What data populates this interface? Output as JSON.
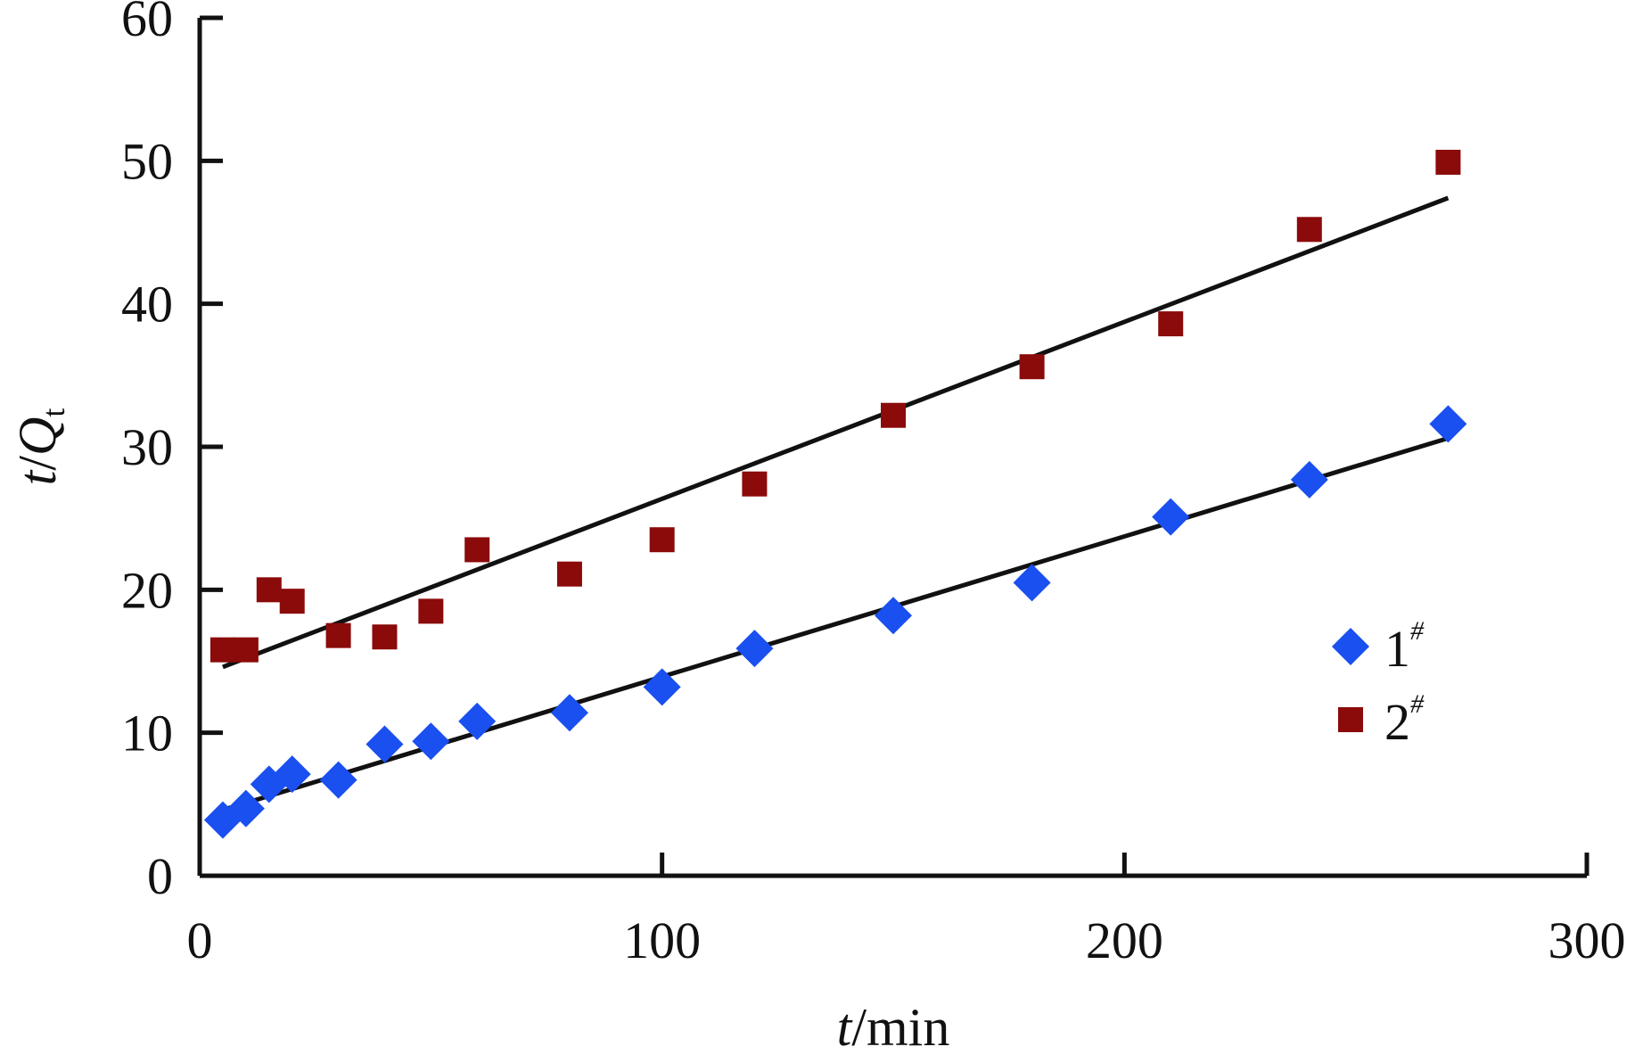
{
  "chart_data": {
    "type": "scatter",
    "xlabel": {
      "italic": "t",
      "rest": "/min"
    },
    "ylabel": {
      "italic_a": "t",
      "slash": "/",
      "italic_b": "Q",
      "sub": "t"
    },
    "xlim": [
      0,
      300
    ],
    "ylim": [
      0,
      60
    ],
    "x_ticks": [
      0,
      100,
      200,
      300
    ],
    "y_ticks": [
      0,
      10,
      20,
      30,
      40,
      50,
      60
    ],
    "legend_position": "right",
    "grid": false,
    "series": [
      {
        "name": "1",
        "name_sup": "#",
        "marker": "diamond",
        "color": "#1a4ff0",
        "x": [
          5,
          10,
          15,
          20,
          30,
          40,
          50,
          60,
          80,
          100,
          120,
          150,
          180,
          210,
          240,
          270
        ],
        "y": [
          3.9,
          4.7,
          6.4,
          7.1,
          6.7,
          9.2,
          9.4,
          10.8,
          11.4,
          13.2,
          15.9,
          18.2,
          20.5,
          25.1,
          27.7,
          31.6
        ],
        "fit": {
          "x": [
            5,
            270
          ],
          "y": [
            4.6,
            30.6
          ]
        }
      },
      {
        "name": "2",
        "name_sup": "#",
        "marker": "square",
        "color": "#8b0a0a",
        "x": [
          5,
          10,
          15,
          20,
          30,
          40,
          50,
          60,
          80,
          100,
          120,
          150,
          180,
          210,
          240,
          270
        ],
        "y": [
          15.8,
          15.8,
          20.0,
          19.2,
          16.8,
          16.7,
          18.5,
          22.8,
          21.1,
          23.5,
          27.4,
          32.2,
          35.6,
          38.6,
          45.2,
          49.9
        ],
        "fit": {
          "x": [
            5,
            270
          ],
          "y": [
            14.6,
            47.4
          ]
        }
      }
    ]
  }
}
